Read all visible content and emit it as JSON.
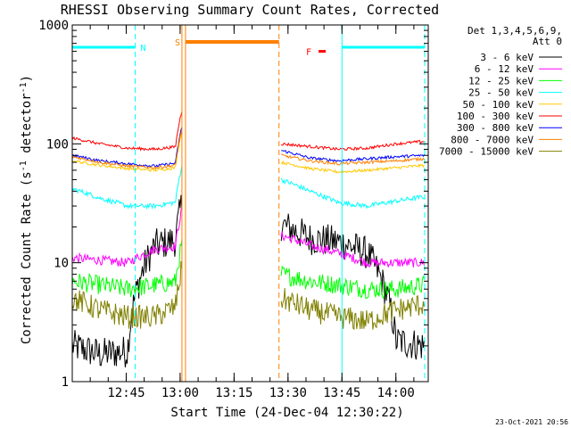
{
  "chart_data": {
    "type": "line",
    "title": "RHESSI Observing Summary Count Rates, Corrected",
    "xlabel": "Start Time (24-Dec-04 12:30:22)",
    "ylabel_main": "Corrected Count Rate (s",
    "ylabel_sup1": "-1",
    "ylabel_mid": " detector",
    "ylabel_sup2": "-1",
    "ylabel_end": ")",
    "y_scale": "log",
    "ylim": [
      1,
      1000
    ],
    "xlim_minutes": [
      0,
      99
    ],
    "x_ticks": [
      {
        "label": "12:45",
        "min": 15
      },
      {
        "label": "13:00",
        "min": 30
      },
      {
        "label": "13:15",
        "min": 45
      },
      {
        "label": "13:30",
        "min": 60
      },
      {
        "label": "13:45",
        "min": 75
      },
      {
        "label": "14:00",
        "min": 90
      }
    ],
    "y_ticks": [
      {
        "label": "1",
        "value": 1
      },
      {
        "label": "10",
        "value": 10
      },
      {
        "label": "100",
        "value": 100
      },
      {
        "label": "1000",
        "value": 1000
      }
    ],
    "detector_info": "Det 1,3,4,5,6,9,",
    "attenuator_info": "Att 0",
    "footer_date": "23-Oct-2021 20:56",
    "night_intervals": [
      [
        0,
        17.5
      ],
      [
        75,
        98
      ]
    ],
    "night_label": "N",
    "saa_interval": [
      31.5,
      57.5
    ],
    "saa_label": "S",
    "saa_markers_min": [
      30.5,
      31.5,
      57.5
    ],
    "flare_label": "F",
    "flare_interval": [
      68.5,
      70.5
    ],
    "flare_level": 600,
    "series": [
      {
        "name": "3 - 6 keV",
        "color": "#000000",
        "pre": [
          2.0,
          1.7,
          1.8,
          14,
          16
        ],
        "post": [
          21,
          16,
          15,
          12,
          2.2,
          2.0
        ],
        "noise": 0.35
      },
      {
        "name": "6 - 12 keV",
        "color": "#ff00ff",
        "pre": [
          11,
          10.5,
          10,
          13,
          14
        ],
        "post": [
          17,
          14,
          12,
          10,
          10,
          10
        ],
        "noise": 0.1
      },
      {
        "name": "12 - 25 keV",
        "color": "#00ff00",
        "pre": [
          7,
          6.5,
          6,
          6.5,
          7
        ],
        "post": [
          8,
          7,
          6.5,
          6,
          6,
          6.5
        ],
        "noise": 0.2
      },
      {
        "name": "25 - 50 keV",
        "color": "#00ffff",
        "pre": [
          42,
          35,
          30,
          30,
          33
        ],
        "post": [
          50,
          40,
          32,
          30,
          33,
          36
        ],
        "noise": 0.05
      },
      {
        "name": "50 - 100 keV",
        "color": "#ffc800",
        "pre": [
          72,
          66,
          62,
          60,
          64
        ],
        "post": [
          70,
          62,
          58,
          60,
          63,
          66
        ],
        "noise": 0.03
      },
      {
        "name": "100 - 300 keV",
        "color": "#ff0000",
        "pre": [
          112,
          100,
          92,
          90,
          96
        ],
        "post": [
          100,
          95,
          90,
          92,
          100,
          105
        ],
        "noise": 0.03
      },
      {
        "name": "300 - 800 keV",
        "color": "#0000ff",
        "pre": [
          80,
          72,
          68,
          65,
          70
        ],
        "post": [
          88,
          76,
          72,
          75,
          78,
          80
        ],
        "noise": 0.03
      },
      {
        "name": "800 - 7000 keV",
        "color": "#ff8000",
        "pre": [
          78,
          70,
          65,
          63,
          67
        ],
        "post": [
          80,
          72,
          68,
          70,
          72,
          75
        ],
        "noise": 0.03
      },
      {
        "name": "7000 - 15000 keV",
        "color": "#808000",
        "pre": [
          5,
          4,
          3.5,
          3.5,
          4.5
        ],
        "post": [
          5,
          4,
          3.5,
          3.2,
          4,
          4.5
        ],
        "noise": 0.25
      }
    ]
  }
}
